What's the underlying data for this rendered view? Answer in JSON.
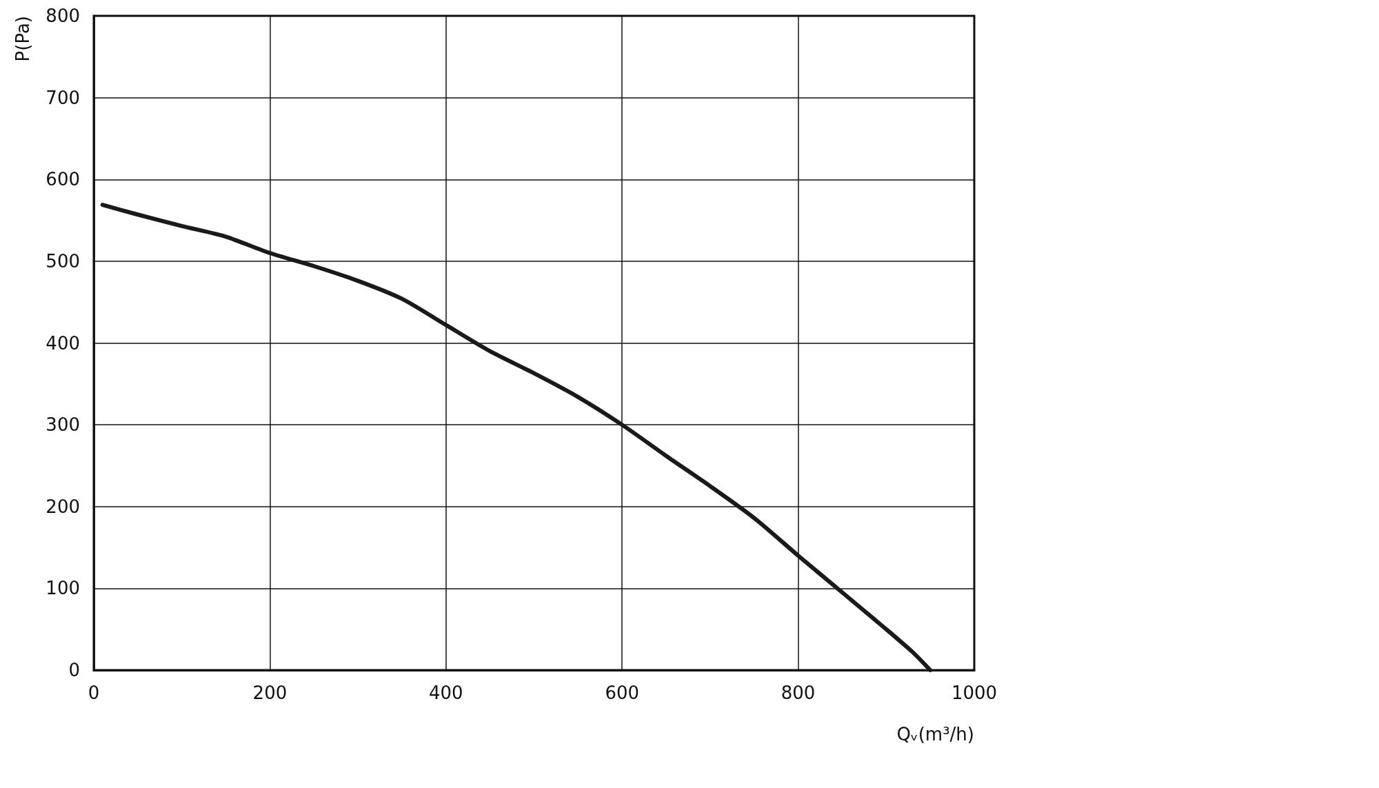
{
  "chart_data": {
    "type": "line",
    "xlabel": "Qᵥ(m³/h)",
    "ylabel": "P(Pa)",
    "series": [
      {
        "color": "#1a1a1a",
        "x": [
          10,
          50,
          100,
          150,
          200,
          250,
          300,
          350,
          400,
          450,
          500,
          550,
          600,
          650,
          700,
          750,
          800,
          850,
          900,
          930,
          950
        ],
        "values": [
          569,
          557,
          543,
          530,
          510,
          494,
          476,
          454,
          422,
          390,
          363,
          334,
          300,
          262,
          225,
          186,
          140,
          95,
          50,
          22,
          0
        ]
      }
    ],
    "xlim": [
      0,
      1000
    ],
    "xticks": [
      0,
      200,
      400,
      600,
      800,
      1000
    ],
    "ylim": [
      0,
      800
    ],
    "yticks": [
      0,
      100,
      200,
      300,
      400,
      500,
      600,
      700,
      800
    ],
    "grid": true,
    "marker": "none",
    "line_style": "solid"
  }
}
